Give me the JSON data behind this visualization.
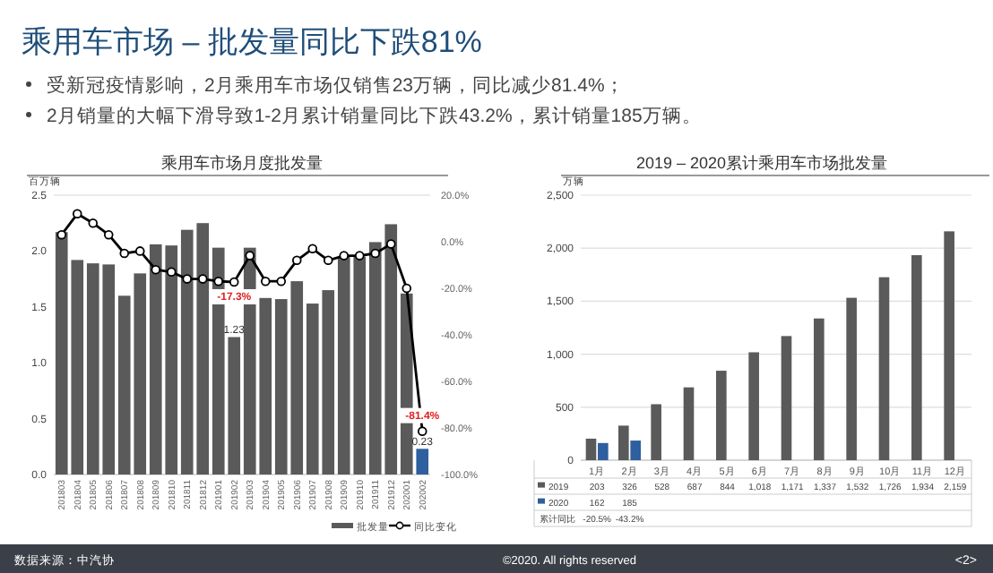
{
  "chart_data": [
    {
      "type": "bar",
      "title": "乘用车市场月度批发量",
      "ylabel": "百万辆",
      "categories": [
        "201803",
        "201804",
        "201805",
        "201806",
        "201807",
        "201808",
        "201809",
        "201810",
        "201811",
        "201812",
        "201901",
        "201902",
        "201903",
        "201904",
        "201905",
        "201906",
        "201907",
        "201908",
        "201909",
        "201910",
        "201911",
        "201912",
        "202001",
        "202002"
      ],
      "ylim": [
        0,
        2.5
      ],
      "yticks": [
        {
          "value": 0,
          "label": "0.0"
        },
        {
          "value": 0.5,
          "label": "0.5"
        },
        {
          "value": 1,
          "label": "1.0"
        },
        {
          "value": 1.5,
          "label": "1.5"
        },
        {
          "value": 2,
          "label": "2.0"
        },
        {
          "value": 2.5,
          "label": "2.5"
        }
      ],
      "y2lim": [
        -100,
        20
      ],
      "y2ticks": [
        {
          "value": 20,
          "label": "20.0%"
        },
        {
          "value": 0,
          "label": "0.0%"
        },
        {
          "value": -20,
          "label": "-20.0%"
        },
        {
          "value": -40,
          "label": "-40.0%"
        },
        {
          "value": -60,
          "label": "-60.0%"
        },
        {
          "value": -80,
          "label": "-80.0%"
        },
        {
          "value": -100,
          "label": "-100.0%"
        }
      ],
      "legend": "bottom right",
      "marker": "circle",
      "series": [
        {
          "name": "批发量",
          "color": "#5a5a5a",
          "colors": [
            "#5a5a5a",
            "#5a5a5a",
            "#5a5a5a",
            "#5a5a5a",
            "#5a5a5a",
            "#5a5a5a",
            "#5a5a5a",
            "#5a5a5a",
            "#5a5a5a",
            "#5a5a5a",
            "#5a5a5a",
            "#5a5a5a",
            "#5a5a5a",
            "#5a5a5a",
            "#5a5a5a",
            "#5a5a5a",
            "#5a5a5a",
            "#5a5a5a",
            "#5a5a5a",
            "#5a5a5a",
            "#5a5a5a",
            "#5a5a5a",
            "#5a5a5a",
            "#2e5f9e"
          ],
          "values": [
            2.17,
            1.92,
            1.89,
            1.88,
            1.6,
            1.8,
            2.06,
            2.05,
            2.19,
            2.25,
            2.03,
            1.23,
            2.03,
            1.58,
            1.57,
            1.73,
            1.53,
            1.65,
            1.95,
            1.95,
            2.08,
            2.24,
            1.62,
            0.23
          ],
          "value_labels": [
            null,
            null,
            null,
            null,
            null,
            null,
            null,
            null,
            null,
            null,
            null,
            "1.23",
            null,
            null,
            null,
            null,
            null,
            null,
            null,
            null,
            null,
            null,
            null,
            "0.23"
          ]
        },
        {
          "name": "同比变化",
          "type": "line",
          "axis": "y2",
          "color": "#000000",
          "values": [
            3,
            12,
            8,
            3,
            -5,
            -4,
            -12,
            -13,
            -16,
            -16,
            -17,
            -17.3,
            -6,
            -17,
            -17,
            -8,
            -3,
            -8,
            -6,
            -6,
            -5,
            -1,
            -20,
            -81.4
          ],
          "value_labels": [
            null,
            null,
            null,
            null,
            null,
            null,
            null,
            null,
            null,
            null,
            null,
            "-17.3%",
            null,
            null,
            null,
            null,
            null,
            null,
            null,
            null,
            null,
            null,
            null,
            "-81.4%"
          ]
        }
      ],
      "annotations": [
        "乘用车市场 – 批发量同比下跌81%",
        "受新冠疫情影响，2月乘用车市场仅销售23万辆，同比减少81.4%；",
        "2月销量的大幅下滑导致1-2月累计销量同比下跌43.2%，累计销量185万辆。",
        "数据来源：中汽协"
      ]
    },
    {
      "type": "bar",
      "title": "2019 – 2020累计乘用车市场批发量",
      "ylabel": "万辆",
      "categories": [
        "1月",
        "2月",
        "3月",
        "4月",
        "5月",
        "6月",
        "7月",
        "8月",
        "9月",
        "10月",
        "11月",
        "12月"
      ],
      "ylim": [
        0,
        2500
      ],
      "yticks": [
        0,
        500,
        {
          "value": 1000,
          "label": "1,000"
        },
        {
          "value": 1500,
          "label": "1,500"
        },
        {
          "value": 2000,
          "label": "2,000"
        },
        {
          "value": 2500,
          "label": "2,500"
        }
      ],
      "grid": "y",
      "legend": "bottom",
      "series": [
        {
          "name": "2019",
          "color": "#5a5a5a",
          "values": [
            203,
            326,
            528,
            687,
            844,
            1018,
            1171,
            1337,
            1532,
            1726,
            1934,
            2159
          ],
          "value_labels": [
            "203",
            "326",
            "528",
            "687",
            "844",
            "1,018",
            "1,171",
            "1,337",
            "1,532",
            "1,726",
            "1,934",
            "2,159"
          ]
        },
        {
          "name": "2020",
          "color": "#2e5f9e",
          "values": [
            162,
            185,
            null,
            null,
            null,
            null,
            null,
            null,
            null,
            null,
            null,
            null
          ],
          "value_labels": [
            "162",
            "185",
            null,
            null,
            null,
            null,
            null,
            null,
            null,
            null,
            null,
            null
          ]
        }
      ],
      "annotations": [
        "累计同比",
        "-20.5%",
        "-43.2%",
        "©2020. All rights reserved",
        "<2>"
      ]
    }
  ]
}
